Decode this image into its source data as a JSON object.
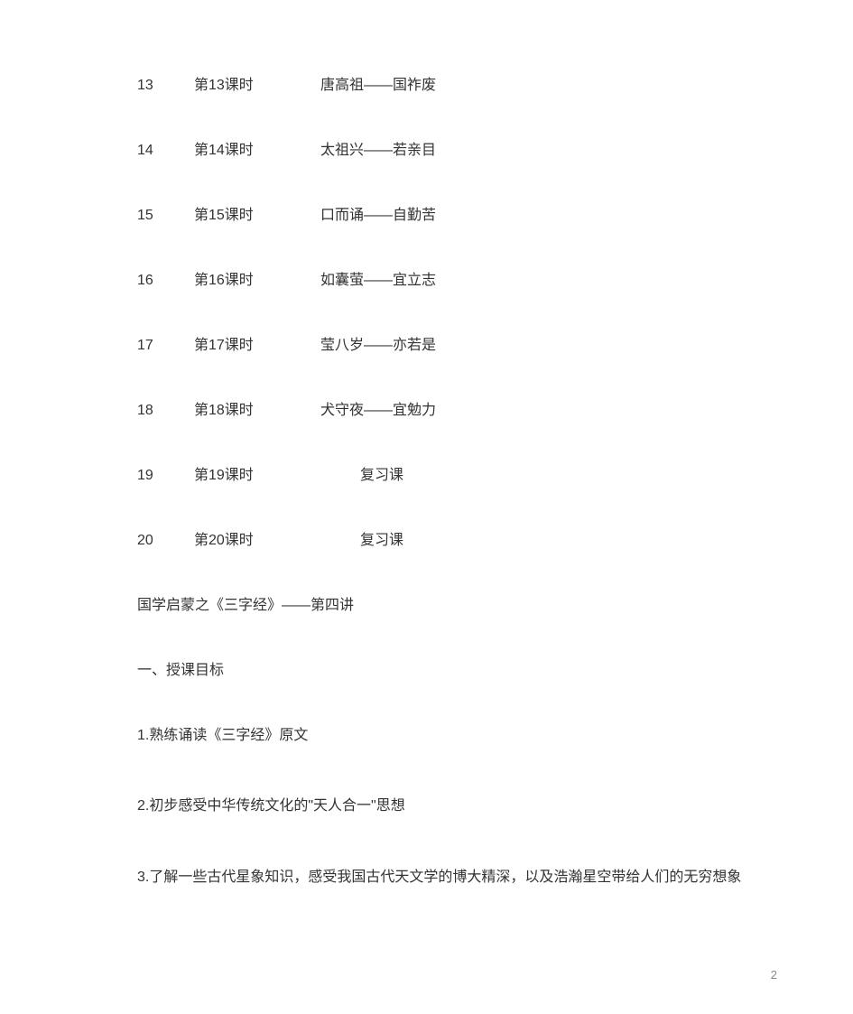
{
  "schedule": [
    {
      "num": "13",
      "lesson": "第13课时",
      "content": "唐高祖——国祚废",
      "centered": false
    },
    {
      "num": "14",
      "lesson": "第14课时",
      "content": "太祖兴——若亲目",
      "centered": false
    },
    {
      "num": "15",
      "lesson": "第15课时",
      "content": "口而诵——自勤苦",
      "centered": false
    },
    {
      "num": "16",
      "lesson": "第16课时",
      "content": "如囊萤——宜立志",
      "centered": false
    },
    {
      "num": "17",
      "lesson": "第17课时",
      "content": "莹八岁——亦若是",
      "centered": false
    },
    {
      "num": "18",
      "lesson": "第18课时",
      "content": "犬守夜——宜勉力",
      "centered": false
    },
    {
      "num": "19",
      "lesson": "第19课时",
      "content": "复习课",
      "centered": true
    },
    {
      "num": "20",
      "lesson": "第20课时",
      "content": "复习课",
      "centered": true
    }
  ],
  "section_title": "国学启蒙之《三字经》——第四讲",
  "sub_heading": "一、授课目标",
  "list_items": [
    "1.熟练诵读《三字经》原文",
    "2.初步感受中华传统文化的\"天人合一\"思想",
    "3.了解一些古代星象知识，感受我国古代天文学的博大精深，以及浩瀚星空带给人们的无穷想象"
  ],
  "page_number": "2",
  "colors": {
    "text": "#333333",
    "page_num": "#888888",
    "background": "#ffffff"
  },
  "typography": {
    "body_fontsize": 16,
    "page_num_fontsize": 13
  }
}
